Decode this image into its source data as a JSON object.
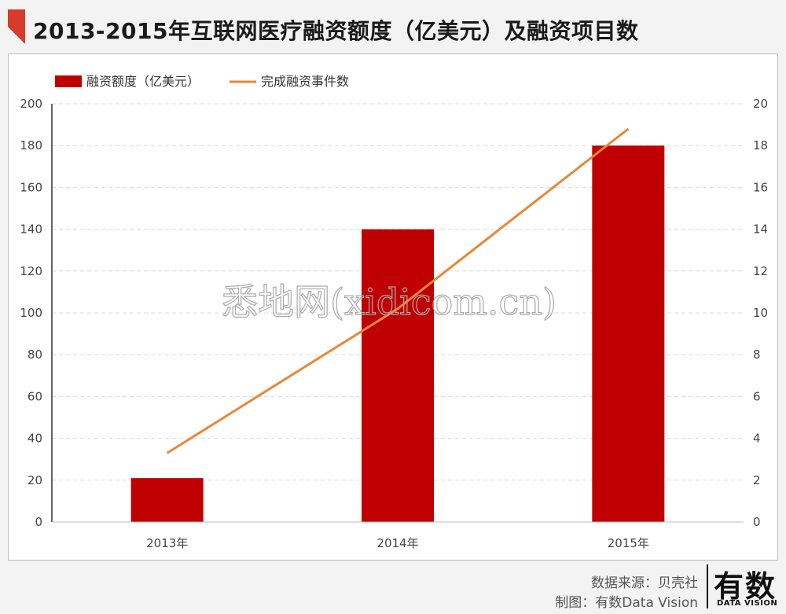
{
  "page": {
    "title": "2013-2015年互联网医疗融资额度（亿美元）及融资项目数",
    "accent_color": "#d83a2b"
  },
  "chart_data": {
    "type": "bar",
    "categories": [
      "2013年",
      "2014年",
      "2015年"
    ],
    "series": [
      {
        "name": "融资额度（亿美元）",
        "type": "bar",
        "axis": "left",
        "values": [
          21,
          140,
          180
        ],
        "color": "#c00000"
      },
      {
        "name": "完成融资事件数",
        "type": "line",
        "axis": "right",
        "values": [
          3.3,
          10.2,
          18.8
        ],
        "color": "#e8873a"
      }
    ],
    "y_left": {
      "min": 0,
      "max": 200,
      "step": 20
    },
    "y_right": {
      "min": 0,
      "max": 20,
      "step": 2
    },
    "grid": true,
    "legend_position": "top-left",
    "watermark": "悉地网(xidicom.cn)"
  },
  "footer": {
    "source": "数据来源：贝壳社",
    "credit": "制图：有数Data Vision",
    "brand_name": "有数",
    "brand_sub": "DATA VISION"
  }
}
